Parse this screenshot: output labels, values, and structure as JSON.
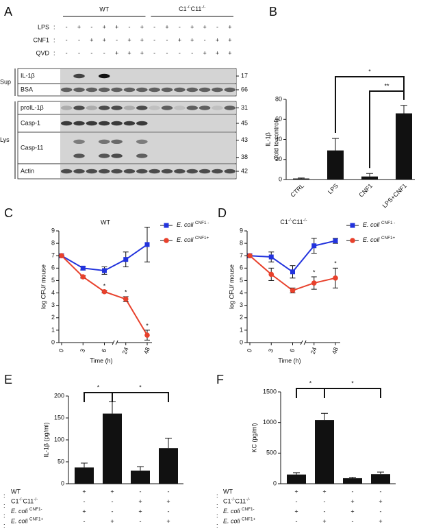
{
  "blot": {
    "panel": "A",
    "groups": [
      "WT",
      "C1-/-C11-/-"
    ],
    "separator": ":",
    "treatments": [
      {
        "label": "LPS",
        "signs": [
          "-",
          "+",
          "-",
          "+",
          "+",
          "-",
          "+",
          "-",
          "+",
          "-",
          "+",
          "+",
          "-",
          "+"
        ]
      },
      {
        "label": "CNF1",
        "signs": [
          "-",
          "-",
          "+",
          "+",
          "-",
          "+",
          "+",
          "-",
          "-",
          "+",
          "+",
          "-",
          "+",
          "+"
        ]
      },
      {
        "label": "QVD",
        "signs": [
          "-",
          "-",
          "-",
          "-",
          "+",
          "+",
          "+",
          "-",
          "-",
          "-",
          "-",
          "+",
          "+",
          "+"
        ]
      }
    ],
    "fractions": [
      {
        "label": "Sup",
        "rows": [
          {
            "label": "IL-1β",
            "mw": [
              17
            ]
          },
          {
            "label": "BSA",
            "mw": [
              66
            ]
          }
        ]
      },
      {
        "label": "Lys",
        "rows": [
          {
            "label": "proIL-1β",
            "mw": [
              31
            ]
          },
          {
            "label": "Casp-1",
            "mw": [
              45
            ]
          },
          {
            "label": "Casp-11",
            "mw": [
              43,
              38
            ]
          },
          {
            "label": "Actin",
            "mw": [
              42
            ]
          }
        ]
      }
    ]
  },
  "chart_data": [
    {
      "panel": "B",
      "type": "bar",
      "categories": [
        "CTRL",
        "LPS",
        "CNF1",
        "LPS+CNF1"
      ],
      "values": [
        1,
        29,
        3,
        66
      ],
      "errors": [
        0.5,
        12,
        3,
        8
      ],
      "color": "#111111",
      "ylabel": [
        "IL-1β",
        "(fold to control)"
      ],
      "ylim": [
        0,
        80
      ],
      "yticks": [
        0,
        20,
        40,
        60,
        80
      ],
      "annotations": [
        "*",
        "**"
      ]
    },
    {
      "panel": "C",
      "type": "line",
      "title": "WT",
      "categories": [
        "0",
        "3",
        "6",
        "24",
        "48"
      ],
      "xlabel": "Time (h)",
      "ylabel": "log CFU/ mouse",
      "ylim": [
        0,
        9
      ],
      "yticks": [
        0,
        1,
        2,
        3,
        4,
        5,
        6,
        7,
        8,
        9
      ],
      "series": [
        {
          "name": "E. coli CNF1 -",
          "color": "#2233dd",
          "marker": "square",
          "values": [
            7,
            6,
            5.8,
            6.7,
            7.9
          ],
          "errors": [
            0,
            0.15,
            0.3,
            0.6,
            1.4
          ]
        },
        {
          "name": "E. coli CNF1+",
          "color": "#e8412c",
          "marker": "circle",
          "values": [
            7,
            5.3,
            4.1,
            3.5,
            0.6
          ],
          "errors": [
            0,
            0.1,
            0.1,
            0.2,
            0.4
          ]
        }
      ],
      "annotations": [
        "*",
        "*",
        "*"
      ]
    },
    {
      "panel": "D",
      "type": "line",
      "title": "C1-/-C11-/-",
      "categories": [
        "0",
        "3",
        "6",
        "24",
        "48"
      ],
      "xlabel": "Time (h)",
      "ylabel": "log CFU/ mouse",
      "ylim": [
        0,
        9
      ],
      "yticks": [
        0,
        1,
        2,
        3,
        4,
        5,
        6,
        7,
        8,
        9
      ],
      "series": [
        {
          "name": "E. coli CNF1 -",
          "color": "#2233dd",
          "marker": "square",
          "values": [
            7,
            6.9,
            5.7,
            7.8,
            8.2
          ],
          "errors": [
            0,
            0.4,
            0.5,
            0.6,
            0.2
          ]
        },
        {
          "name": "E. coli CNF1+",
          "color": "#e8412c",
          "marker": "circle",
          "values": [
            7,
            5.5,
            4.2,
            4.8,
            5.2
          ],
          "errors": [
            0,
            0.5,
            0.2,
            0.5,
            0.8
          ]
        }
      ],
      "annotations": [
        "*",
        "*"
      ]
    },
    {
      "panel": "E",
      "type": "bar",
      "values": [
        37,
        160,
        30,
        81
      ],
      "errors": [
        10,
        27,
        9,
        23
      ],
      "color": "#111111",
      "ylabel": "IL-1β (pg/ml)",
      "ylim": [
        0,
        200
      ],
      "yticks": [
        0,
        50,
        100,
        150,
        200
      ],
      "annotations": [
        "*",
        "*"
      ],
      "separator": ":",
      "conditions": [
        {
          "label": "WT",
          "signs": [
            "+",
            "+",
            "-",
            "-"
          ]
        },
        {
          "label": "C1-/-C11-/-",
          "signs": [
            "-",
            "-",
            "+",
            "+"
          ]
        },
        {
          "label": "E. coli CNF1-",
          "signs": [
            "+",
            "-",
            "+",
            "-"
          ]
        },
        {
          "label": "E. coli CNF1+",
          "signs": [
            "-",
            "+",
            "-",
            "+"
          ]
        }
      ]
    },
    {
      "panel": "F",
      "type": "bar",
      "values": [
        150,
        1040,
        90,
        155
      ],
      "errors": [
        30,
        110,
        15,
        35
      ],
      "color": "#111111",
      "ylabel": "KC (pg/ml)",
      "ylim": [
        0,
        1500
      ],
      "yticks": [
        0,
        500,
        1000,
        1500
      ],
      "annotations": [
        "*",
        "*"
      ],
      "separator": ":",
      "conditions": [
        {
          "label": "WT",
          "signs": [
            "+",
            "+",
            "-",
            "-"
          ]
        },
        {
          "label": "C1-/-C11-/-",
          "signs": [
            "-",
            "-",
            "+",
            "+"
          ]
        },
        {
          "label": "E. coli CNF1-",
          "signs": [
            "+",
            "-",
            "+",
            "-"
          ]
        },
        {
          "label": "E. coli CNF1+",
          "signs": [
            "-",
            "+",
            "-",
            "+"
          ]
        }
      ]
    }
  ]
}
